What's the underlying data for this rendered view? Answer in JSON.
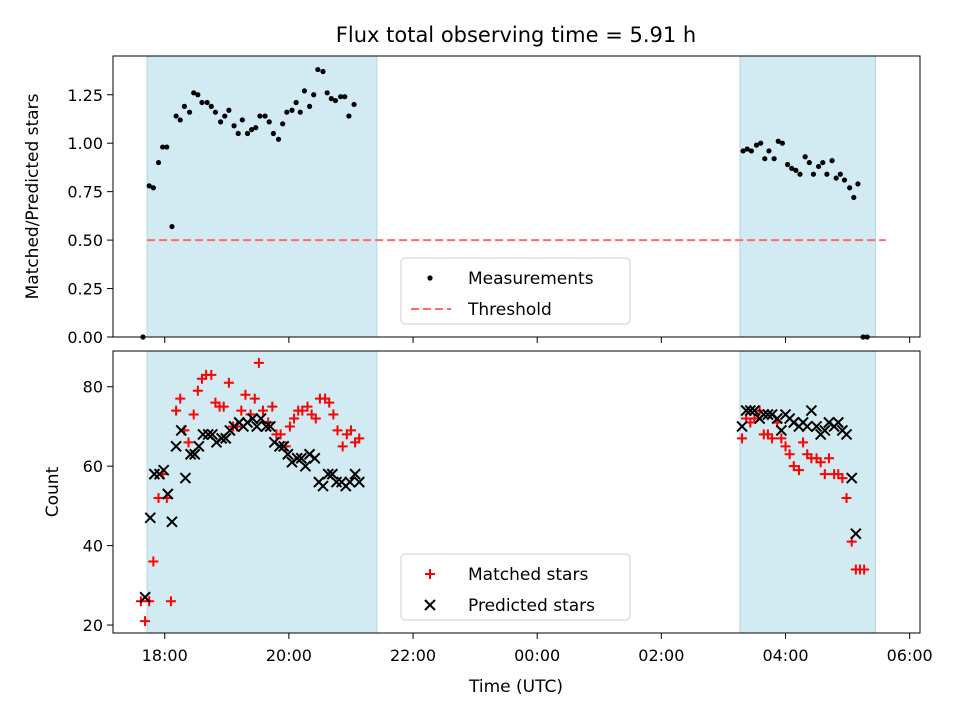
{
  "figure": {
    "title": "Flux total observing time = 5.91 h",
    "xlabel": "Time (UTC)"
  },
  "chart_data": [
    {
      "type": "scatter",
      "ylabel": "Matched/Predicted stars",
      "xlim": [
        "17:10",
        "06:10"
      ],
      "ylim": [
        0,
        1.45
      ],
      "yticks": [
        "0.00",
        "0.25",
        "0.50",
        "0.75",
        "1.00",
        "1.25"
      ],
      "shaded_intervals": [
        [
          "17:43",
          "21:25"
        ],
        [
          "03:16",
          "05:27"
        ]
      ],
      "shade_color": "#add8e6",
      "legend": {
        "position": "lower center",
        "entries": [
          "Measurements",
          "Threshold"
        ]
      },
      "series": [
        {
          "name": "Measurements",
          "marker": "dot",
          "color": "#000000",
          "points": [
            [
              "17:39",
              0.0
            ],
            [
              "17:45",
              0.78
            ],
            [
              "17:49",
              0.77
            ],
            [
              "17:54",
              0.9
            ],
            [
              "17:58",
              0.98
            ],
            [
              "18:02",
              0.98
            ],
            [
              "18:07",
              0.57
            ],
            [
              "18:11",
              1.14
            ],
            [
              "18:15",
              1.12
            ],
            [
              "18:19",
              1.19
            ],
            [
              "18:24",
              1.16
            ],
            [
              "18:28",
              1.26
            ],
            [
              "18:32",
              1.25
            ],
            [
              "18:36",
              1.21
            ],
            [
              "18:41",
              1.21
            ],
            [
              "18:45",
              1.19
            ],
            [
              "18:49",
              1.16
            ],
            [
              "18:54",
              1.11
            ],
            [
              "18:58",
              1.14
            ],
            [
              "19:02",
              1.17
            ],
            [
              "19:07",
              1.09
            ],
            [
              "19:11",
              1.05
            ],
            [
              "19:15",
              1.12
            ],
            [
              "19:20",
              1.05
            ],
            [
              "19:24",
              1.07
            ],
            [
              "19:28",
              1.08
            ],
            [
              "19:32",
              1.14
            ],
            [
              "19:37",
              1.14
            ],
            [
              "19:41",
              1.11
            ],
            [
              "19:45",
              1.05
            ],
            [
              "19:50",
              1.02
            ],
            [
              "19:54",
              1.1
            ],
            [
              "19:58",
              1.16
            ],
            [
              "20:03",
              1.17
            ],
            [
              "20:07",
              1.21
            ],
            [
              "20:11",
              1.16
            ],
            [
              "20:15",
              1.27
            ],
            [
              "20:20",
              1.19
            ],
            [
              "20:24",
              1.25
            ],
            [
              "20:28",
              1.38
            ],
            [
              "20:33",
              1.37
            ],
            [
              "20:37",
              1.26
            ],
            [
              "20:41",
              1.23
            ],
            [
              "20:45",
              1.22
            ],
            [
              "20:50",
              1.24
            ],
            [
              "20:54",
              1.24
            ],
            [
              "20:58",
              1.14
            ],
            [
              "21:03",
              1.2
            ],
            [
              "03:19",
              0.96
            ],
            [
              "03:23",
              0.97
            ],
            [
              "03:27",
              0.96
            ],
            [
              "03:32",
              0.99
            ],
            [
              "03:36",
              1.0
            ],
            [
              "03:40",
              0.92
            ],
            [
              "03:44",
              0.96
            ],
            [
              "03:49",
              0.92
            ],
            [
              "03:53",
              1.01
            ],
            [
              "03:57",
              1.0
            ],
            [
              "04:02",
              0.89
            ],
            [
              "04:06",
              0.87
            ],
            [
              "04:10",
              0.86
            ],
            [
              "04:14",
              0.84
            ],
            [
              "04:19",
              0.93
            ],
            [
              "04:23",
              0.9
            ],
            [
              "04:27",
              0.84
            ],
            [
              "04:32",
              0.88
            ],
            [
              "04:36",
              0.9
            ],
            [
              "04:40",
              0.84
            ],
            [
              "04:45",
              0.91
            ],
            [
              "04:49",
              0.82
            ],
            [
              "04:53",
              0.84
            ],
            [
              "04:57",
              0.81
            ],
            [
              "05:02",
              0.77
            ],
            [
              "05:06",
              0.72
            ],
            [
              "05:10",
              0.79
            ],
            [
              "05:15",
              0.0
            ],
            [
              "05:19",
              0.0
            ]
          ]
        },
        {
          "name": "Threshold",
          "type": "line",
          "style": "dashed",
          "color": "#ff6b6b",
          "x": [
            "17:43",
            "05:37"
          ],
          "y": [
            0.5,
            0.5
          ]
        }
      ]
    },
    {
      "type": "scatter",
      "ylabel": "Count",
      "xlim": [
        "17:10",
        "06:10"
      ],
      "ylim": [
        18,
        89
      ],
      "yticks": [
        "20",
        "40",
        "60",
        "80"
      ],
      "xticks": [
        "18:00",
        "20:00",
        "22:00",
        "00:00",
        "02:00",
        "04:00",
        "06:00"
      ],
      "shaded_intervals": [
        [
          "17:43",
          "21:25"
        ],
        [
          "03:16",
          "05:27"
        ]
      ],
      "shade_color": "#add8e6",
      "legend": {
        "position": "lower center",
        "entries": [
          "Matched stars",
          "Predicted stars"
        ]
      },
      "series": [
        {
          "name": "Matched stars",
          "marker": "plus",
          "color": "#ff0000",
          "points": [
            [
              "17:37",
              26
            ],
            [
              "17:41",
              21
            ],
            [
              "17:45",
              26
            ],
            [
              "17:49",
              36
            ],
            [
              "17:54",
              52
            ],
            [
              "17:58",
              58
            ],
            [
              "18:02",
              52
            ],
            [
              "18:06",
              26
            ],
            [
              "18:11",
              74
            ],
            [
              "18:15",
              77
            ],
            [
              "18:19",
              69
            ],
            [
              "18:23",
              66
            ],
            [
              "18:28",
              73
            ],
            [
              "18:32",
              79
            ],
            [
              "18:36",
              82
            ],
            [
              "18:40",
              83
            ],
            [
              "18:45",
              83
            ],
            [
              "18:49",
              76
            ],
            [
              "18:53",
              75
            ],
            [
              "18:57",
              75
            ],
            [
              "19:02",
              81
            ],
            [
              "19:06",
              70
            ],
            [
              "19:10",
              70
            ],
            [
              "19:14",
              74
            ],
            [
              "19:18",
              78
            ],
            [
              "19:23",
              73
            ],
            [
              "19:27",
              77
            ],
            [
              "19:31",
              86
            ],
            [
              "19:35",
              74
            ],
            [
              "19:40",
              71
            ],
            [
              "19:44",
              75
            ],
            [
              "19:48",
              68
            ],
            [
              "19:52",
              68
            ],
            [
              "19:57",
              65
            ],
            [
              "20:01",
              70
            ],
            [
              "20:05",
              72
            ],
            [
              "20:09",
              74
            ],
            [
              "20:13",
              74
            ],
            [
              "20:18",
              75
            ],
            [
              "20:22",
              73
            ],
            [
              "20:26",
              72
            ],
            [
              "20:30",
              77
            ],
            [
              "20:35",
              77
            ],
            [
              "20:39",
              76
            ],
            [
              "20:43",
              73
            ],
            [
              "20:47",
              69
            ],
            [
              "20:52",
              65
            ],
            [
              "20:56",
              68
            ],
            [
              "21:00",
              69
            ],
            [
              "21:04",
              66
            ],
            [
              "21:08",
              67
            ],
            [
              "03:18",
              67
            ],
            [
              "03:22",
              72
            ],
            [
              "03:26",
              71
            ],
            [
              "03:30",
              72
            ],
            [
              "03:35",
              74
            ],
            [
              "03:39",
              68
            ],
            [
              "03:43",
              68
            ],
            [
              "03:47",
              67
            ],
            [
              "03:52",
              71
            ],
            [
              "03:56",
              67
            ],
            [
              "04:00",
              65
            ],
            [
              "04:04",
              63
            ],
            [
              "04:08",
              60
            ],
            [
              "04:13",
              59
            ],
            [
              "04:17",
              66
            ],
            [
              "04:21",
              63
            ],
            [
              "04:25",
              62
            ],
            [
              "04:30",
              62
            ],
            [
              "04:34",
              61
            ],
            [
              "04:38",
              58
            ],
            [
              "04:42",
              62
            ],
            [
              "04:47",
              58
            ],
            [
              "04:51",
              58
            ],
            [
              "04:55",
              57
            ],
            [
              "04:59",
              52
            ],
            [
              "05:04",
              41
            ],
            [
              "05:08",
              34
            ],
            [
              "05:12",
              34
            ],
            [
              "05:16",
              34
            ]
          ]
        },
        {
          "name": "Predicted stars",
          "marker": "x",
          "color": "#000000",
          "points": [
            [
              "17:41",
              27
            ],
            [
              "17:46",
              47
            ],
            [
              "17:50",
              58
            ],
            [
              "17:55",
              58
            ],
            [
              "17:59",
              59
            ],
            [
              "18:03",
              53
            ],
            [
              "18:07",
              46
            ],
            [
              "18:11",
              65
            ],
            [
              "18:16",
              69
            ],
            [
              "18:20",
              57
            ],
            [
              "18:25",
              63
            ],
            [
              "18:29",
              63
            ],
            [
              "18:33",
              65
            ],
            [
              "18:37",
              68
            ],
            [
              "18:42",
              68
            ],
            [
              "18:46",
              68
            ],
            [
              "18:50",
              66
            ],
            [
              "18:55",
              67
            ],
            [
              "18:59",
              67
            ],
            [
              "19:03",
              69
            ],
            [
              "19:07",
              70
            ],
            [
              "19:12",
              71
            ],
            [
              "19:16",
              70
            ],
            [
              "19:20",
              71
            ],
            [
              "19:25",
              72
            ],
            [
              "19:29",
              70
            ],
            [
              "19:33",
              72
            ],
            [
              "19:38",
              70
            ],
            [
              "19:42",
              70
            ],
            [
              "19:46",
              66
            ],
            [
              "19:51",
              65
            ],
            [
              "19:55",
              65
            ],
            [
              "19:59",
              63
            ],
            [
              "20:03",
              61
            ],
            [
              "20:08",
              62
            ],
            [
              "20:12",
              62
            ],
            [
              "20:16",
              60
            ],
            [
              "20:20",
              63
            ],
            [
              "20:25",
              62
            ],
            [
              "20:29",
              56
            ],
            [
              "20:33",
              55
            ],
            [
              "20:38",
              58
            ],
            [
              "20:42",
              58
            ],
            [
              "20:46",
              56
            ],
            [
              "20:51",
              56
            ],
            [
              "20:55",
              55
            ],
            [
              "20:59",
              56
            ],
            [
              "21:04",
              58
            ],
            [
              "21:08",
              56
            ],
            [
              "03:18",
              70
            ],
            [
              "03:22",
              74
            ],
            [
              "03:26",
              74
            ],
            [
              "03:30",
              74
            ],
            [
              "03:35",
              72
            ],
            [
              "03:39",
              73
            ],
            [
              "03:43",
              73
            ],
            [
              "03:47",
              73
            ],
            [
              "03:52",
              72
            ],
            [
              "03:56",
              69
            ],
            [
              "04:00",
              73
            ],
            [
              "04:04",
              72
            ],
            [
              "04:08",
              71
            ],
            [
              "04:13",
              70
            ],
            [
              "04:17",
              71
            ],
            [
              "04:21",
              70
            ],
            [
              "04:25",
              74
            ],
            [
              "04:30",
              70
            ],
            [
              "04:34",
              68
            ],
            [
              "04:38",
              69
            ],
            [
              "04:42",
              71
            ],
            [
              "04:47",
              70
            ],
            [
              "04:51",
              71
            ],
            [
              "04:55",
              69
            ],
            [
              "04:59",
              68
            ],
            [
              "05:04",
              57
            ],
            [
              "05:08",
              43
            ]
          ]
        }
      ]
    }
  ]
}
